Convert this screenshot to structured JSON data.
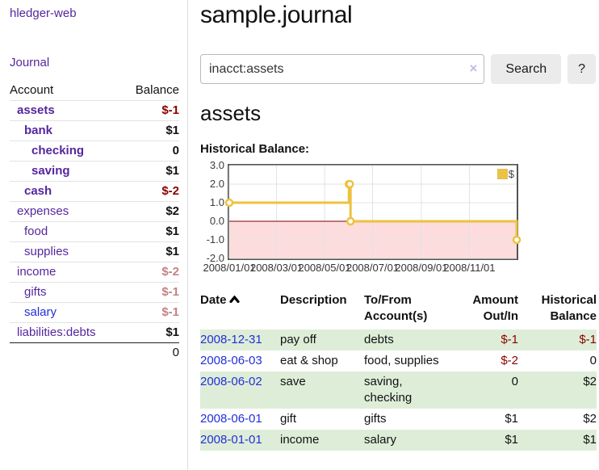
{
  "sidebar": {
    "brand": "hledger-web",
    "nav_journal": "Journal",
    "table_headers": {
      "account": "Account",
      "balance": "Balance"
    },
    "accounts": [
      {
        "name": "assets",
        "balance": "$-1"
      },
      {
        "name": "bank",
        "balance": "$1"
      },
      {
        "name": "checking",
        "balance": "0"
      },
      {
        "name": "saving",
        "balance": "$1"
      },
      {
        "name": "cash",
        "balance": "$-2"
      },
      {
        "name": "expenses",
        "balance": "$2"
      },
      {
        "name": "food",
        "balance": "$1"
      },
      {
        "name": "supplies",
        "balance": "$1"
      },
      {
        "name": "income",
        "balance": "$-2"
      },
      {
        "name": "gifts",
        "balance": "$-1"
      },
      {
        "name": "salary",
        "balance": "$-1"
      },
      {
        "name": "liabilities:debts",
        "balance": "$1"
      }
    ],
    "total": "0"
  },
  "header": {
    "title": "sample.journal",
    "search_value": "inacct:assets",
    "clear_icon": "×",
    "search_button": "Search",
    "help_button": "?"
  },
  "account_page": {
    "heading": "assets",
    "chart_label": "Historical Balance:"
  },
  "chart_data": {
    "type": "step-line",
    "title": "Historical Balance",
    "series_name": "$",
    "points": [
      {
        "date": "2008/01/01",
        "day": 0,
        "value": 1
      },
      {
        "date": "2008/06/01",
        "day": 152,
        "value": 2
      },
      {
        "date": "2008/06/02",
        "day": 153,
        "value": 2
      },
      {
        "date": "2008/06/03",
        "day": 154,
        "value": 0
      },
      {
        "date": "2008/12/31",
        "day": 365,
        "value": -1
      }
    ],
    "ylim": [
      -2,
      3
    ],
    "yticks": [
      3,
      2,
      1,
      0,
      -1,
      -2
    ],
    "xtick_labels": [
      "2008/01/01",
      "2008/03/01",
      "2008/05/01",
      "2008/07/01",
      "2008/09/01",
      "2008/11/01"
    ],
    "xtick_days": [
      0,
      60,
      121,
      182,
      244,
      305
    ],
    "x_range_days": 365,
    "legend_position": "top-right",
    "colors": {
      "series": "#edc240",
      "negative_fill": "#fcdcdc",
      "zero_line": "#800000",
      "grid": "#e3e3e3",
      "border": "#545454"
    }
  },
  "table": {
    "headers": {
      "date": "Date",
      "description": "Description",
      "tofrom": "To/From Account(s)",
      "amount": "Amount Out/In",
      "balance": "Historical Balance"
    },
    "rows": [
      {
        "date": "2008-12-31",
        "description": "pay off",
        "accounts": "debts",
        "amount": "$-1",
        "balance": "$-1"
      },
      {
        "date": "2008-06-03",
        "description": "eat & shop",
        "accounts": "food, supplies",
        "amount": "$-2",
        "balance": "0"
      },
      {
        "date": "2008-06-02",
        "description": "save",
        "accounts": "saving,\nchecking",
        "amount": "0",
        "balance": "$2"
      },
      {
        "date": "2008-06-01",
        "description": "gift",
        "accounts": "gifts",
        "amount": "$1",
        "balance": "$2"
      },
      {
        "date": "2008-01-01",
        "description": "income",
        "accounts": "salary",
        "amount": "$1",
        "balance": "$1"
      }
    ]
  }
}
